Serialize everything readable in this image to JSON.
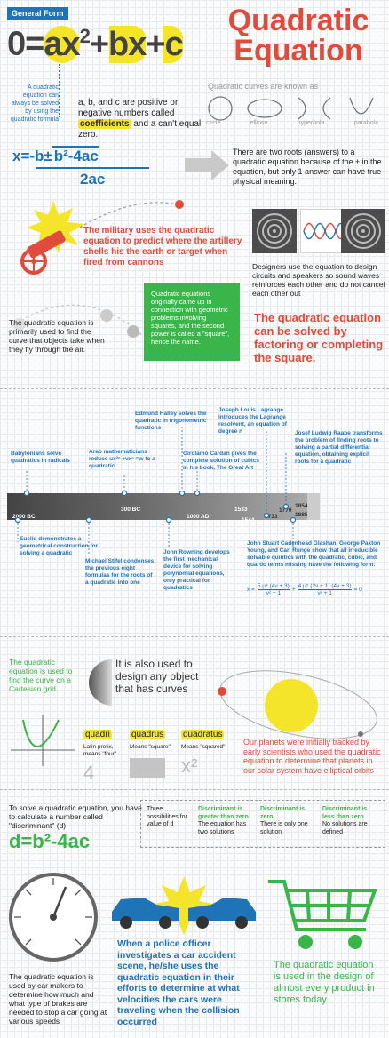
{
  "header": {
    "badge": "General Form",
    "title_line1": "Quadratic",
    "title_line2": "Equation",
    "formula": {
      "lhs": "0=",
      "ax": "ax",
      "exp": "2",
      "plus_bx": "+bx",
      "plus_c": "+c"
    }
  },
  "intro": {
    "side_note": "A quadratic equation can always be solved by using the quadratic formula",
    "coeff_text_pre": "a, b, and c are positive or negative numbers called",
    "coeff_highlight": "coefficients",
    "coeff_text_post": "and a can't equal zero.",
    "curves_title": "Quadratic curves are known as",
    "curves": [
      "circle",
      "ellipse",
      "hyperbola",
      "parabola"
    ]
  },
  "formula2": {
    "top_left": "x=-b±",
    "radicand": "b²-4ac",
    "denominator": "2ac",
    "roots_text": "There are two roots (answers) to a quadratic equation because of the ± in the equation, but only 1 answer can have true physical meaning."
  },
  "military": {
    "text": "The military uses the quadratic equation to predict where the artillery shells his the earth or target when fired from cannons"
  },
  "designers": {
    "text": "Designers use the equation to design circuits and speakers so sound waves reinforces each other and do not cancel each other out"
  },
  "objects": {
    "text": "The quadratic equation is primarily used to find the curve that objects take when they fly through the air."
  },
  "origin_box": {
    "text": "Quadratic equations originally came up in connection with geometric problems involving squares, and the second power is called a \"square\", hence the name."
  },
  "factoring": {
    "text": "The quadratic equation can be solved by factoring or completing the square."
  },
  "timeline": {
    "years": [
      "2000 BC",
      "300 BC",
      "1000 AD",
      "1533",
      "1544",
      "1733",
      "1770",
      "1854",
      "1885"
    ],
    "notes": {
      "babylonians": "Babylonians solve quadratics in radicals",
      "arab": "Arab mathematicians reduce ux²ⁿ +vxⁿ =w to a quadratic",
      "halley": "Edmund Halley solves the quadratic in trigonometric functions",
      "cardan": "Girolamo Cardan gives the complete solution of cubics in his book, The Great Art",
      "lagrange": "Joseph Louis Lagrange introduces the Lagrange resolvent, an equation of degree n",
      "raabe": "Josef Ludwig Raabe transforms the problem of finding roots to solving a partial differential equation, obtaining explicit roots for a quadratic",
      "euclid": "Euclid demonstrates a geometrical construction for solving a quadratic",
      "stifel": "Michael Stifel condenses the previous eight formulas for the roots of a quadratic into one",
      "rowning": "John Rowning develops the first mechanical device for solving polynomial equations, only practical for quadratics",
      "glashan": "John Stuart Cadenhead Glashan, George Paxton Young, and Carl Runge show that all irreducible solvable quintics with the quadratic, cubic, and quartic terms missing have the following form:"
    },
    "quintic": {
      "x": "x =",
      "t1": "5 μ⁴ (4ν + 3)",
      "b1": "ν² + 1",
      "t2": "4 μ⁵ (2ν + 1) (4ν + 3)",
      "b2": "ν² + 1",
      "eq": "= 0"
    }
  },
  "cartesian": {
    "text": "The quadratic equation is used to find the curve on a Cartesian grid",
    "curves_text": "It is also used to design any object that has curves",
    "planets_text": "Our planets were initially tracked by early scientists who used the quadratic equation to determine that planets in our solar system have elliptical orbits",
    "etym": [
      {
        "word": "quadri",
        "meaning": "Latin prefix, means \"four\"",
        "symbol": "4"
      },
      {
        "word": "quadrus",
        "meaning": "Means \"square\"",
        "symbol": ""
      },
      {
        "word": "quadratus",
        "meaning": "Means \"squared\"",
        "symbol": "x²"
      }
    ]
  },
  "discriminant": {
    "intro": "To solve a quadratic equation, you have to calculate a number called \"discriminant\" (d)",
    "formula": "d=b²-4ac",
    "possibilities": "Three possibilities for value of d",
    "cases": [
      {
        "title": "Discriminant is greater than zero",
        "desc": "The equation has two solutions"
      },
      {
        "title": "Discriminant is zero",
        "desc": "There is only one solution"
      },
      {
        "title": "Discriminant is less than zero",
        "desc": "No solutions are defined"
      }
    ]
  },
  "bottom": {
    "gauge_text": "The quadratic equation is used by car makers to determine how much and what type of brakes are needed to stop a car going at various speeds",
    "police_text": "When a police officer investigates a car accident scene, he/she uses the quadratic equation in their efforts to determine at what velocities the cars were traveling when the collision occurred",
    "cart_text": "The quadratic equation is used in the design of almost every product in stores today"
  },
  "colors": {
    "red": "#e04b3b",
    "blue": "#1f73b7",
    "green": "#39b54a",
    "yellow": "#f4e52b",
    "gray": "#8c8c8c"
  }
}
